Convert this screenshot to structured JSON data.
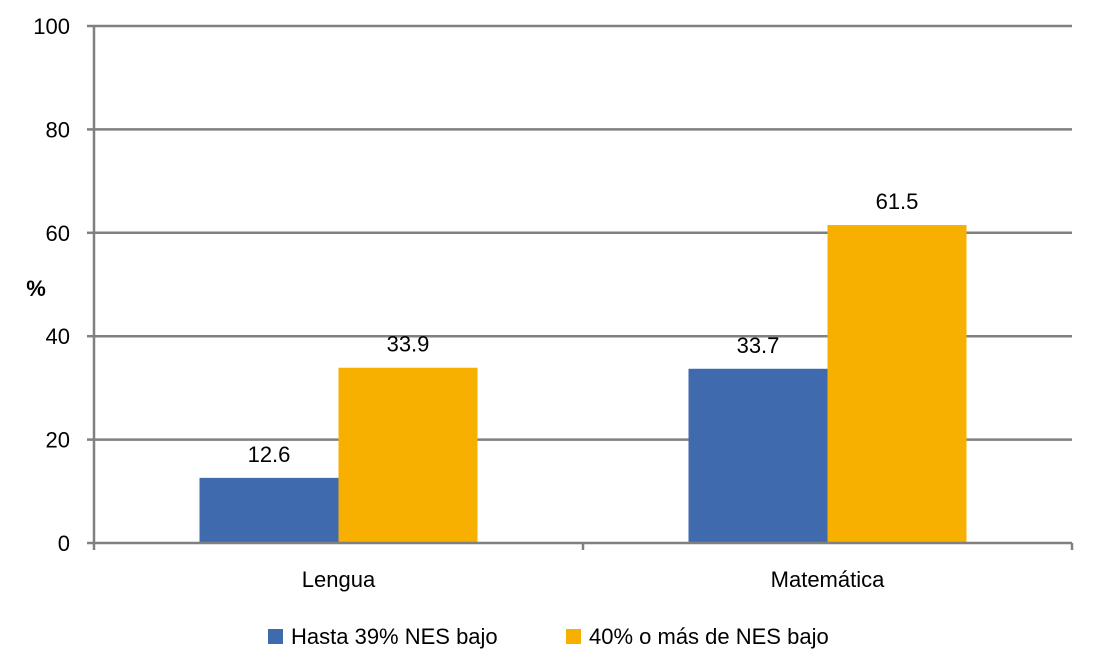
{
  "chart_data": {
    "type": "bar",
    "title": "",
    "xlabel": "",
    "ylabel": "%",
    "ylim": [
      0,
      100
    ],
    "yticks": [
      0,
      20,
      40,
      60,
      80,
      100
    ],
    "grid": true,
    "legend_position": "bottom",
    "categories": [
      "Lengua",
      "Matemática"
    ],
    "series": [
      {
        "name": "Hasta 39% NES bajo",
        "color": "#3F6AAE",
        "values": [
          12.6,
          33.7
        ],
        "labels": [
          "12.6",
          "33.7"
        ]
      },
      {
        "name": "40% o más de NES bajo",
        "color": "#F7B000",
        "values": [
          33.9,
          61.5
        ],
        "labels": [
          "33.9",
          "61.5"
        ]
      }
    ]
  }
}
